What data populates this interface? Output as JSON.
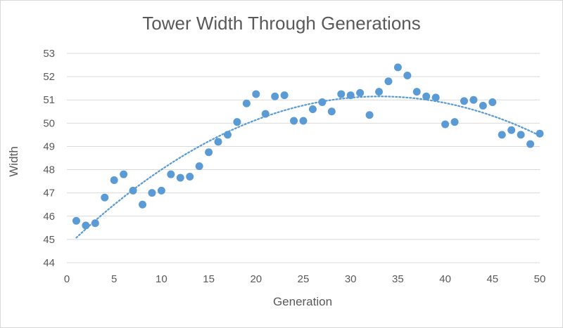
{
  "chart_data": {
    "type": "scatter",
    "title": "Tower Width Through Generations",
    "xlabel": "Generation",
    "ylabel": "Width",
    "xlim": [
      0,
      50
    ],
    "ylim": [
      44,
      53
    ],
    "xticks": [
      0,
      5,
      10,
      15,
      20,
      25,
      30,
      35,
      40,
      45,
      50
    ],
    "yticks": [
      44,
      45,
      46,
      47,
      48,
      49,
      50,
      51,
      52,
      53
    ],
    "grid": "horizontal",
    "legend": "none",
    "point_color": "#5b9bd5",
    "trendline": {
      "type": "polynomial-2",
      "style": "dotted",
      "color": "#5b9bd5",
      "x_range": [
        1,
        50
      ]
    },
    "series": [
      {
        "x": [
          1,
          2,
          3,
          4,
          5,
          6,
          7,
          8,
          9,
          10,
          11,
          12,
          13,
          14,
          15,
          16,
          17,
          18,
          19,
          20,
          21,
          22,
          23,
          24,
          25,
          26,
          27,
          28,
          29,
          30,
          31,
          32,
          33,
          34,
          35,
          36,
          37,
          38,
          39,
          40,
          41,
          42,
          43,
          44,
          45,
          46,
          47,
          48,
          49,
          50
        ],
        "y": [
          45.8,
          45.6,
          45.7,
          46.8,
          47.55,
          47.8,
          47.1,
          46.5,
          47.0,
          47.1,
          47.8,
          47.65,
          47.7,
          48.15,
          48.75,
          49.2,
          49.5,
          50.05,
          50.85,
          51.25,
          50.4,
          51.15,
          51.2,
          50.1,
          50.1,
          50.6,
          50.9,
          50.5,
          51.25,
          51.2,
          51.3,
          50.35,
          51.35,
          51.8,
          52.4,
          52.05,
          51.35,
          51.15,
          51.1,
          49.95,
          50.05,
          50.95,
          51.0,
          50.75,
          50.9,
          49.5,
          49.7,
          49.5,
          49.1,
          49.55
        ]
      }
    ]
  }
}
